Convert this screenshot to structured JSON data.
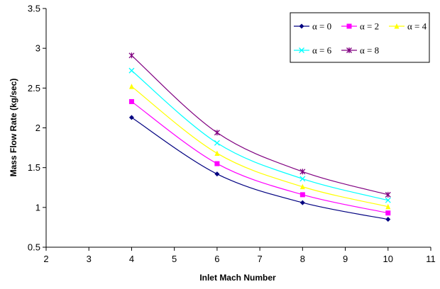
{
  "chart_data": {
    "type": "line",
    "xlabel": "Inlet Mach Number",
    "ylabel": "Mass Flow Rate (kg/sec)",
    "xlim": [
      2,
      11
    ],
    "ylim": [
      0.5,
      3.5
    ],
    "x_ticks": [
      "2",
      "3",
      "4",
      "5",
      "6",
      "7",
      "8",
      "9",
      "10",
      "11"
    ],
    "y_ticks": [
      "0.5",
      "1",
      "1.5",
      "2",
      "2.5",
      "3",
      "3.5"
    ],
    "x_tick_values": [
      2,
      3,
      4,
      5,
      6,
      7,
      8,
      9,
      10,
      11
    ],
    "y_tick_values": [
      0.5,
      1,
      1.5,
      2,
      2.5,
      3,
      3.5
    ],
    "grid": false,
    "legend_position": "top-right",
    "x": [
      4,
      6,
      8,
      10
    ],
    "series": [
      {
        "name": "α = 0",
        "values": [
          2.13,
          1.42,
          1.06,
          0.85
        ],
        "color": "#000080",
        "marker": "diamond"
      },
      {
        "name": "α = 2",
        "values": [
          2.33,
          1.55,
          1.16,
          0.93
        ],
        "color": "#ff00ff",
        "marker": "square"
      },
      {
        "name": "α = 4",
        "values": [
          2.52,
          1.68,
          1.26,
          1.01
        ],
        "color": "#ffff00",
        "marker": "triangle"
      },
      {
        "name": "α = 6",
        "values": [
          2.72,
          1.81,
          1.36,
          1.09
        ],
        "color": "#00ffff",
        "marker": "x"
      },
      {
        "name": "α = 8",
        "values": [
          2.91,
          1.94,
          1.45,
          1.16
        ],
        "color": "#800080",
        "marker": "star"
      }
    ]
  }
}
